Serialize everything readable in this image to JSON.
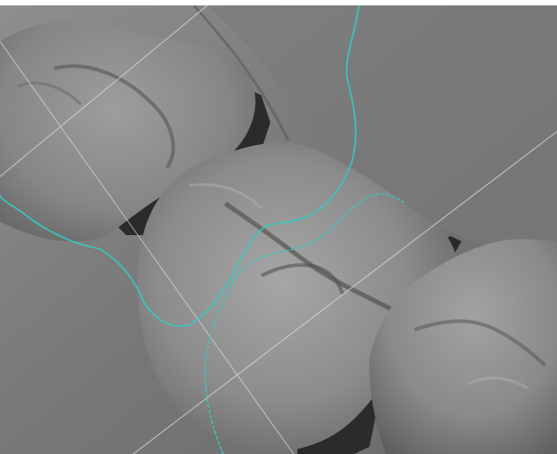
{
  "viewport": {
    "background_color": "#7f7f7f",
    "mesh_color": "#8a8a8a",
    "void_color": "#2a2a2a",
    "guide_line_color": "#d9d9d9",
    "margin_curve_color": "#35c9c0"
  }
}
